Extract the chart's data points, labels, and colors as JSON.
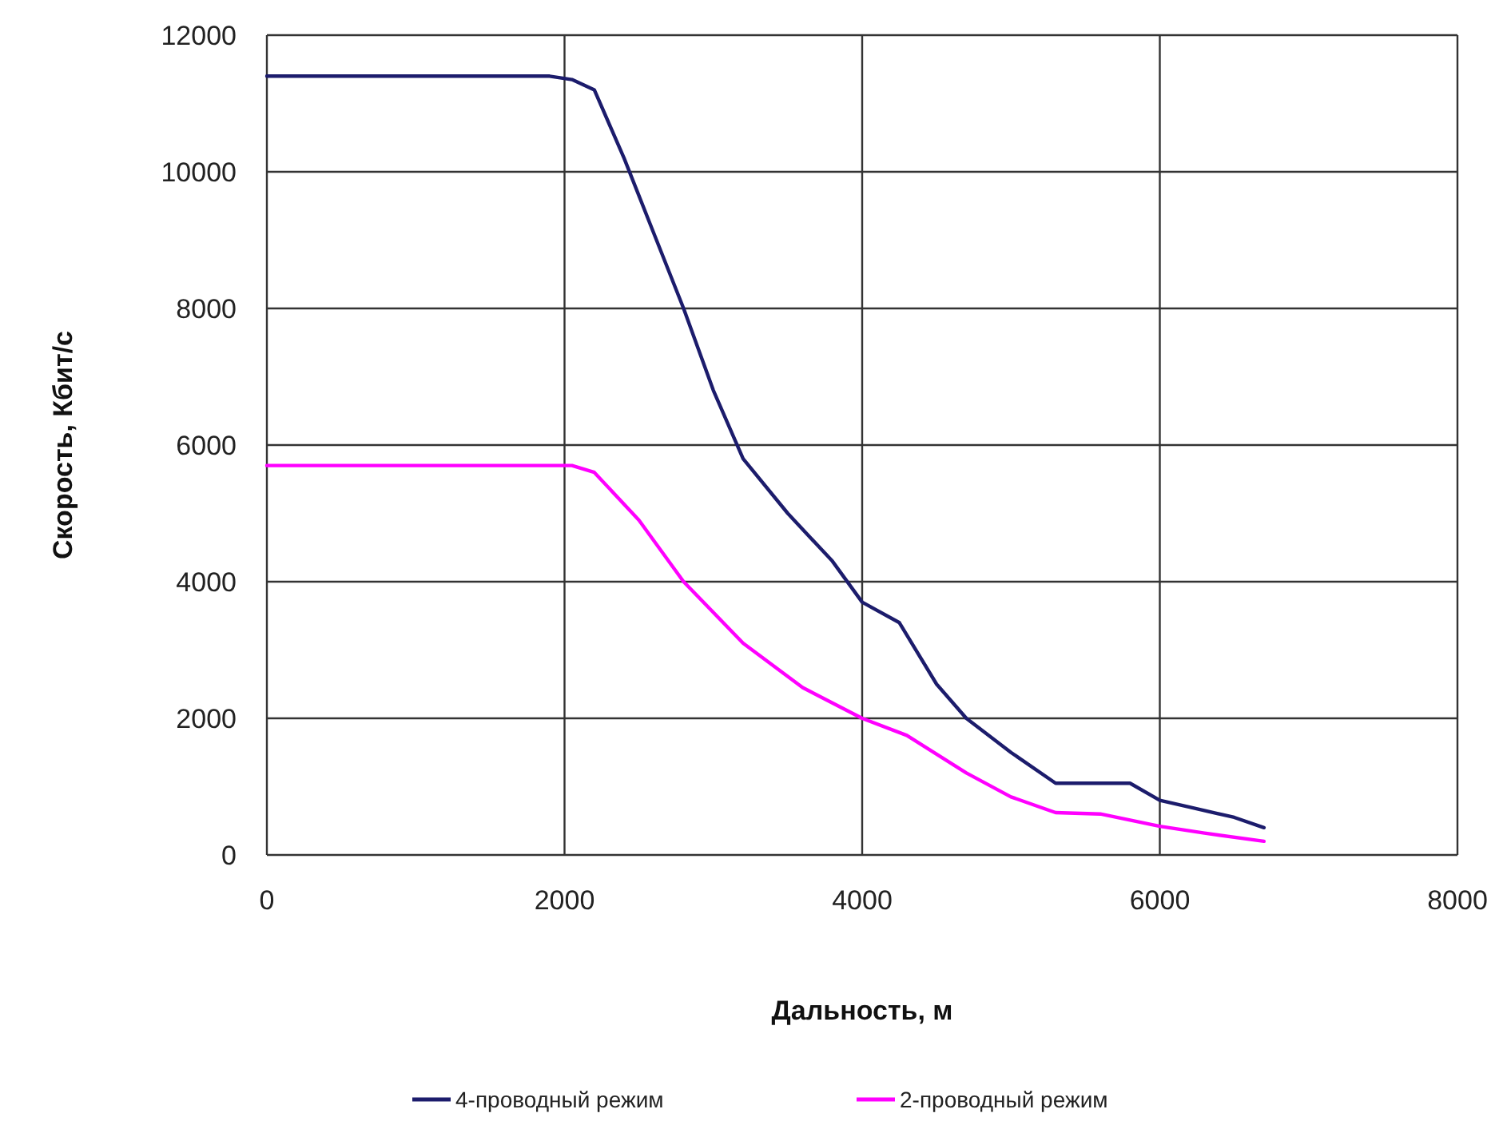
{
  "chart_data": {
    "type": "line",
    "xlabel": "Дальность, м",
    "ylabel": "Скорость, Кбит/с",
    "xlim": [
      0,
      8000
    ],
    "xticks": [
      0,
      2000,
      4000,
      6000,
      8000
    ],
    "ylim": [
      0,
      12000
    ],
    "yticks": [
      0,
      2000,
      4000,
      6000,
      8000,
      10000,
      12000
    ],
    "grid": true,
    "legend": "bottom",
    "marker": "none",
    "line_style": "solid",
    "series": [
      {
        "name": "4-проводный режим",
        "color": "#1c1c6c",
        "x": [
          0,
          1900,
          2050,
          2200,
          2400,
          2600,
          2800,
          3000,
          3200,
          3500,
          3800,
          4000,
          4250,
          4500,
          4700,
          5000,
          5300,
          5800,
          6000,
          6200,
          6500,
          6700
        ],
        "values": [
          11400,
          11400,
          11350,
          11200,
          10200,
          9100,
          8000,
          6800,
          5800,
          5000,
          4300,
          3700,
          3400,
          2500,
          2000,
          1500,
          1050,
          1050,
          800,
          700,
          550,
          400
        ]
      },
      {
        "name": "2-проводный режим",
        "color": "#ff00ff",
        "x": [
          0,
          2050,
          2200,
          2500,
          2800,
          3200,
          3600,
          4000,
          4300,
          4700,
          5000,
          5300,
          5600,
          6000,
          6300,
          6700
        ],
        "values": [
          5700,
          5700,
          5600,
          4900,
          4000,
          3100,
          2450,
          2000,
          1750,
          1200,
          850,
          620,
          600,
          420,
          320,
          200
        ]
      }
    ]
  }
}
